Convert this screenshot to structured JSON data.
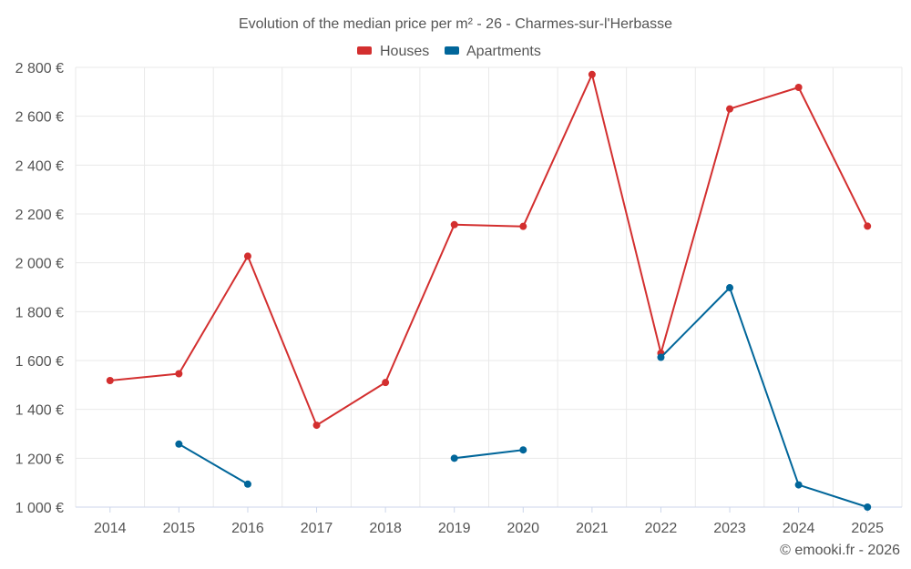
{
  "chart_data": {
    "type": "line",
    "title": "Evolution of the median price per m² - 26 - Charmes-sur-l'Herbasse",
    "categories": [
      "2014",
      "2015",
      "2016",
      "2017",
      "2018",
      "2019",
      "2020",
      "2021",
      "2022",
      "2023",
      "2024",
      "2025"
    ],
    "series": [
      {
        "name": "Houses",
        "color": "#d32f2f",
        "values": [
          1518,
          1546,
          2027,
          1335,
          1510,
          2156,
          2149,
          2771,
          1630,
          2630,
          2718,
          2150
        ]
      },
      {
        "name": "Apartments",
        "color": "#01669a",
        "values": [
          null,
          1258,
          1094,
          null,
          null,
          1200,
          1234,
          null,
          1613,
          1898,
          1091,
          1000
        ]
      }
    ],
    "ylim": [
      1000,
      2800
    ],
    "yticks": [
      1000,
      1200,
      1400,
      1600,
      1800,
      2000,
      2200,
      2400,
      2600,
      2800
    ],
    "ytick_labels": [
      "1 000 €",
      "1 200 €",
      "1 400 €",
      "1 600 €",
      "1 800 €",
      "2 000 €",
      "2 200 €",
      "2 400 €",
      "2 600 €",
      "2 800 €"
    ],
    "legend_position": "top-center",
    "grid": true,
    "xlabel": "",
    "ylabel": ""
  },
  "credit": "© emooki.fr - 2026"
}
